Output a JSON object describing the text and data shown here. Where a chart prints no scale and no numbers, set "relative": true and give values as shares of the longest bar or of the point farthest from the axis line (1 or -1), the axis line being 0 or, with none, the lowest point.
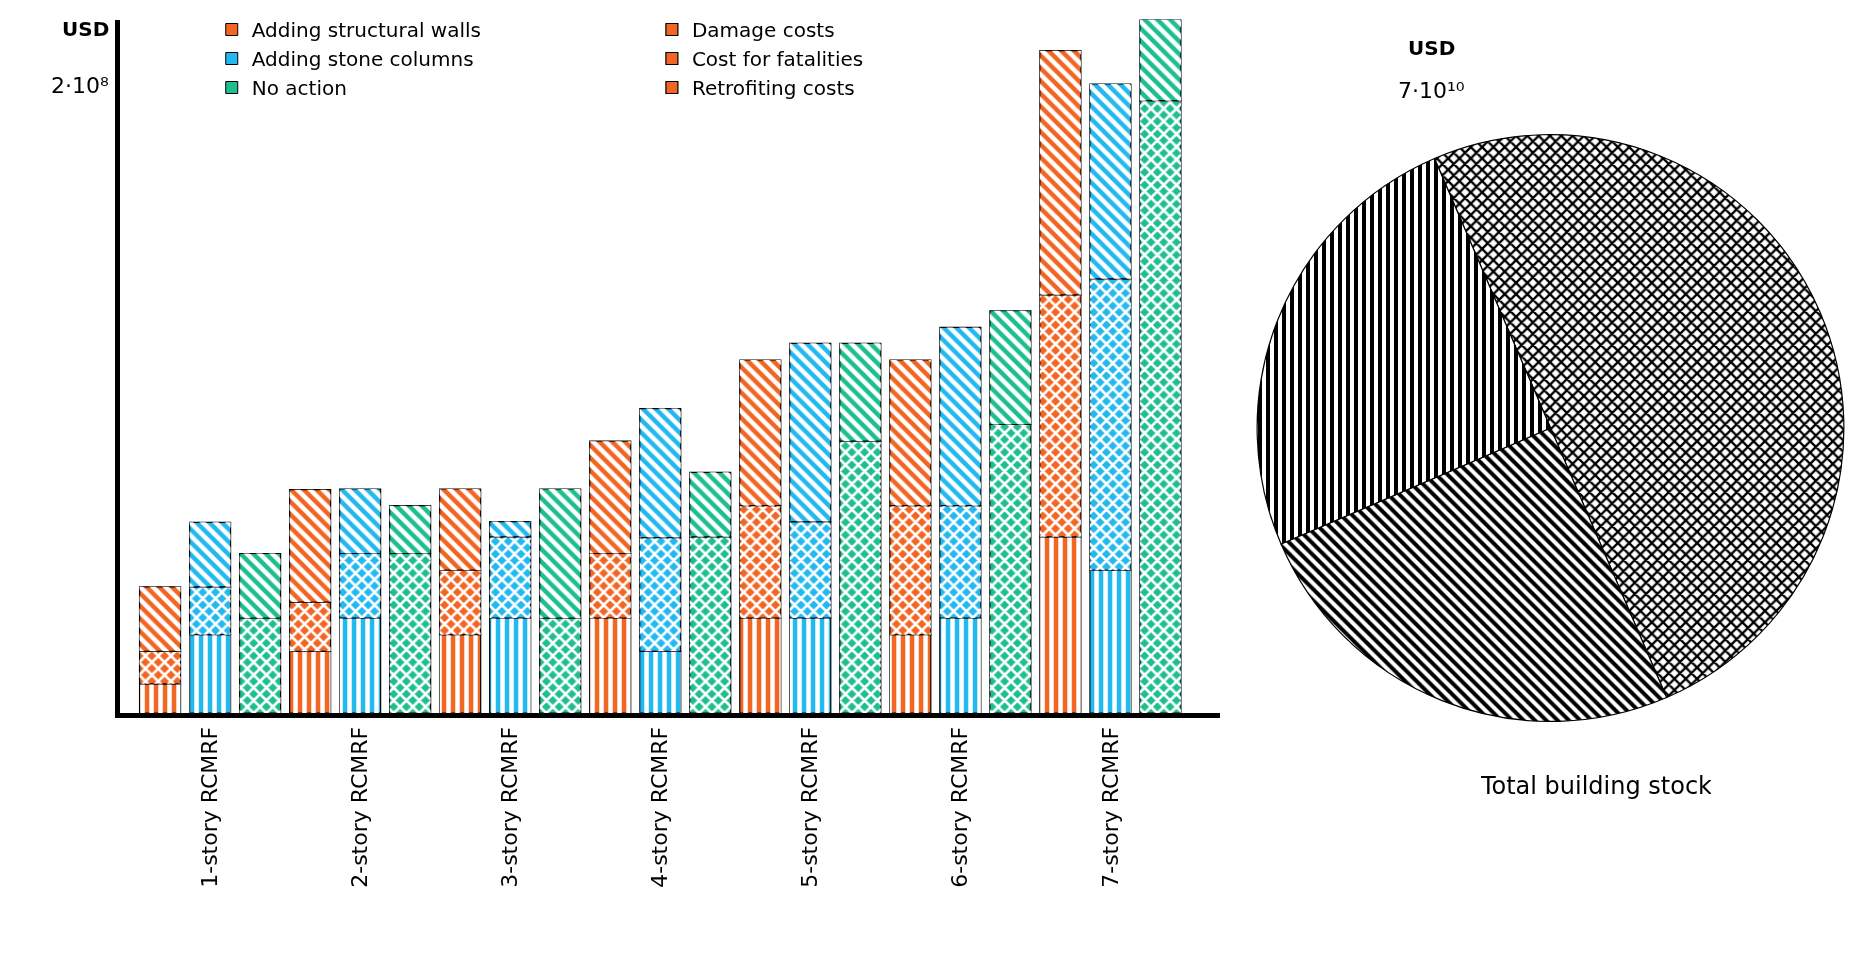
{
  "chart_data": [
    {
      "type": "bar",
      "stacked": true,
      "relative": true,
      "ylabel": "USD",
      "annotations": [
        "2·10⁸"
      ],
      "legend": "top left",
      "categories": [
        null,
        "1-story RCMRF",
        null,
        null,
        "2-story RCMRF",
        null,
        null,
        "3-story RCMRF",
        null,
        null,
        "4-story RCMRF",
        null,
        null,
        "5-story RCMRF",
        null,
        null,
        "6-story RCMRF",
        null,
        null,
        "7-story RCMRF",
        null
      ],
      "series": [
        {
          "name": "Retrofiting costs",
          "colors": [
            "#f26522",
            "#22b8f0",
            "#1dbf8e",
            "#f26522",
            "#22b8f0",
            "#1dbf8e",
            "#f26522",
            "#22b8f0",
            "#1dbf8e",
            "#f26522",
            "#22b8f0",
            "#1dbf8e",
            "#f26522",
            "#22b8f0",
            "#1dbf8e",
            "#f26522",
            "#22b8f0",
            "#1dbf8e",
            "#f26522",
            "#22b8f0",
            "#1dbf8e"
          ],
          "values": [
            0.042,
            0.113,
            null,
            0.089,
            0.137,
            null,
            0.113,
            0.137,
            null,
            0.137,
            0.089,
            null,
            0.137,
            0.137,
            null,
            0.113,
            0.137,
            null,
            0.254,
            0.206,
            null
          ]
        },
        {
          "name": "Cost for fatalities",
          "colors": [
            "#f26522",
            "#22b8f0",
            "#1dbf8e",
            "#f26522",
            "#22b8f0",
            "#1dbf8e",
            "#f26522",
            "#22b8f0",
            "#1dbf8e",
            "#f26522",
            "#22b8f0",
            "#1dbf8e",
            "#f26522",
            "#22b8f0",
            "#1dbf8e",
            "#f26522",
            "#22b8f0",
            "#1dbf8e",
            "#f26522",
            "#22b8f0",
            "#1dbf8e"
          ],
          "values": [
            0.047,
            0.069,
            0.137,
            0.071,
            0.093,
            0.23,
            0.093,
            0.117,
            0.137,
            0.093,
            0.164,
            0.254,
            0.162,
            0.139,
            0.392,
            0.186,
            0.162,
            0.416,
            0.349,
            0.42,
            0.883
          ]
        },
        {
          "name": "Damage costs",
          "colors": [
            "#f26522",
            "#22b8f0",
            "#1dbf8e",
            "#f26522",
            "#22b8f0",
            "#1dbf8e",
            "#f26522",
            "#22b8f0",
            "#1dbf8e",
            "#f26522",
            "#22b8f0",
            "#1dbf8e",
            "#f26522",
            "#22b8f0",
            "#1dbf8e",
            "#f26522",
            "#22b8f0",
            "#1dbf8e",
            "#f26522",
            "#22b8f0",
            "#1dbf8e"
          ],
          "values": [
            0.093,
            0.093,
            0.093,
            0.162,
            0.093,
            0.069,
            0.117,
            0.022,
            0.186,
            0.162,
            0.186,
            0.093,
            0.21,
            0.257,
            0.141,
            0.21,
            0.257,
            0.164,
            0.352,
            0.281,
            0.117
          ]
        },
        {
          "name": "Adding structural walls",
          "color": "#f26522",
          "values": [
            null,
            null,
            null,
            null,
            null,
            null,
            null,
            null,
            null,
            null,
            null,
            null,
            null,
            null,
            null,
            null,
            null,
            null,
            null,
            null,
            null
          ]
        },
        {
          "name": "Adding stone columns",
          "color": "#22b8f0",
          "values": [
            null,
            null,
            null,
            null,
            null,
            null,
            null,
            null,
            null,
            null,
            null,
            null,
            null,
            null,
            null,
            null,
            null,
            null,
            null,
            null,
            null
          ]
        },
        {
          "name": "No action",
          "color": "#1dbf8e",
          "values": [
            null,
            null,
            null,
            null,
            null,
            null,
            null,
            null,
            null,
            null,
            null,
            null,
            null,
            null,
            null,
            null,
            null,
            null,
            null,
            null,
            null
          ]
        }
      ]
    },
    {
      "type": "pie",
      "title": "Total building stock",
      "annotations": [
        "USD",
        "7·10¹⁰"
      ],
      "categories": [
        null,
        null,
        null
      ],
      "values": [
        50,
        25,
        25
      ],
      "colors": [
        "#000000",
        "#000000",
        "#000000"
      ]
    }
  ]
}
